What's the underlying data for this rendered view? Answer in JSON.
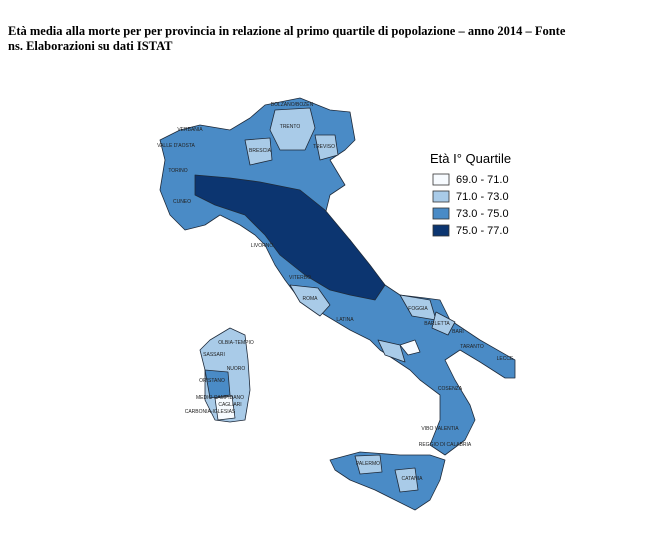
{
  "header": {
    "title_lines": [
      "Età media alla morte per per provincia in relazione al primo quartile di popolazione – anno 2014 – Fonte",
      "ns. Elaborazioni su dati ISTAT"
    ]
  },
  "legend": {
    "title": "Età I° Quartile",
    "items": [
      {
        "label": "69.0 - 71.0",
        "color": "#f7fbff"
      },
      {
        "label": "71.0 - 73.0",
        "color": "#a9cbe8"
      },
      {
        "label": "73.0 - 75.0",
        "color": "#4a8bc6"
      },
      {
        "label": "75.0 - 77.0",
        "color": "#0c3570"
      }
    ]
  },
  "map": {
    "labels": [
      "BOLZANO/BOZEN",
      "VERBANIA",
      "VALLE D'AOSTA",
      "TORINO",
      "CUNEO",
      "TRENTO",
      "BRESCIA",
      "TREVISO",
      "LIVORNO",
      "VITERBO",
      "ROMA",
      "LATINA",
      "FOGGIA",
      "BARLETTA",
      "BARI",
      "TARANTO",
      "LECCE",
      "COSENZA",
      "VIBO VALENTIA",
      "REGGIO DI CALABRIA",
      "PALERMO",
      "CATANIA",
      "OLBIA-TEMPIO",
      "SASSARI",
      "NUORO",
      "ORISTANO",
      "MEDIO CAMPIDANO",
      "CAGLIARI",
      "CARBONIA-IGLESIAS"
    ]
  }
}
